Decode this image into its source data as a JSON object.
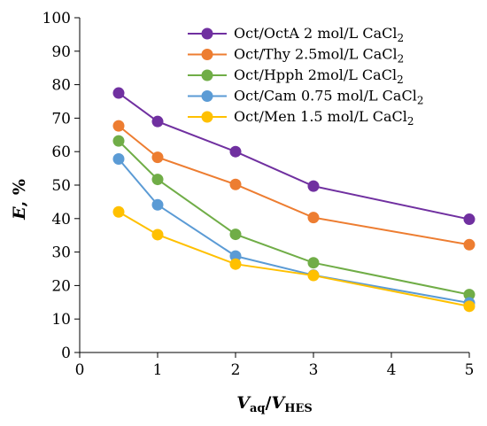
{
  "chart_data": {
    "type": "line",
    "title": "",
    "x": [
      0.5,
      1,
      2,
      3,
      5
    ],
    "xlim": [
      0,
      5
    ],
    "ylim": [
      0,
      100
    ],
    "xticks": [
      "0",
      "1",
      "2",
      "3",
      "4",
      "5"
    ],
    "yticks": [
      "0",
      "10",
      "20",
      "30",
      "40",
      "50",
      "60",
      "70",
      "80",
      "90",
      "100"
    ],
    "ylabel": {
      "main": "E",
      "rest": ", %"
    },
    "xlabel": {
      "v1": "V",
      "v1_sub": "aq",
      "slash": "/",
      "v2": "V",
      "v2_sub": "HES"
    },
    "grid": false,
    "legend_position": "top-right",
    "series": [
      {
        "name": "Oct/OctA 2 mol/L CaCl",
        "name_sub": "2",
        "color": "#7030A0",
        "values": [
          77.5,
          69,
          60,
          49.7,
          39.8
        ]
      },
      {
        "name": "Oct/Thy 2.5mol/L CaCl",
        "name_sub": "2",
        "color": "#ED7D31",
        "values": [
          67.7,
          58.3,
          50.2,
          40.3,
          32.2
        ]
      },
      {
        "name": "Oct/Hpph 2mol/L CaCl",
        "name_sub": "2",
        "color": "#70AD47",
        "values": [
          63.2,
          51.7,
          35.3,
          26.8,
          17.3
        ]
      },
      {
        "name": "Oct/Cam 0.75 mol/L CaCl",
        "name_sub": "2",
        "color": "#5B9BD5",
        "values": [
          57.8,
          44.1,
          28.8,
          23.1,
          14.8
        ]
      },
      {
        "name": "Oct/Men 1.5 mol/L CaCl",
        "name_sub": "2",
        "color": "#FFC000",
        "values": [
          42,
          35.2,
          26.4,
          23,
          13.8
        ]
      }
    ]
  }
}
